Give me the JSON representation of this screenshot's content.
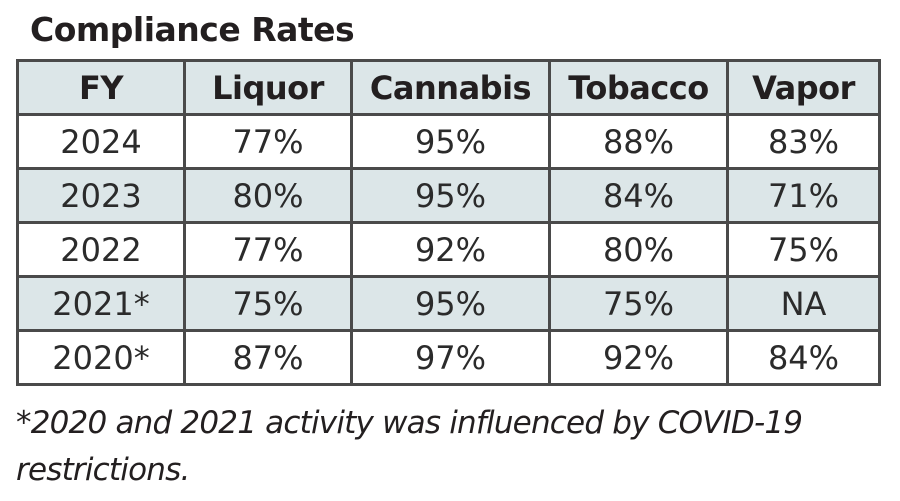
{
  "title": "Compliance Rates",
  "table": {
    "headers": [
      "FY",
      "Liquor",
      "Cannabis",
      "Tobacco",
      "Vapor"
    ],
    "rows": [
      {
        "fy": "2024",
        "liquor": "77%",
        "cannabis": "95%",
        "tobacco": "88%",
        "vapor": "83%"
      },
      {
        "fy": "2023",
        "liquor": "80%",
        "cannabis": "95%",
        "tobacco": "84%",
        "vapor": "71%"
      },
      {
        "fy": "2022",
        "liquor": "77%",
        "cannabis": "92%",
        "tobacco": "80%",
        "vapor": "75%"
      },
      {
        "fy": "2021*",
        "liquor": "75%",
        "cannabis": "95%",
        "tobacco": "75%",
        "vapor": "NA"
      },
      {
        "fy": "2020*",
        "liquor": "87%",
        "cannabis": "97%",
        "tobacco": "92%",
        "vapor": "84%"
      }
    ]
  },
  "footnote": "*2020 and 2021 activity was influenced by COVID-19 restrictions.",
  "colors": {
    "header_fill": "#dce6e8",
    "border": "#4a4a4a",
    "text": "#231f20"
  }
}
